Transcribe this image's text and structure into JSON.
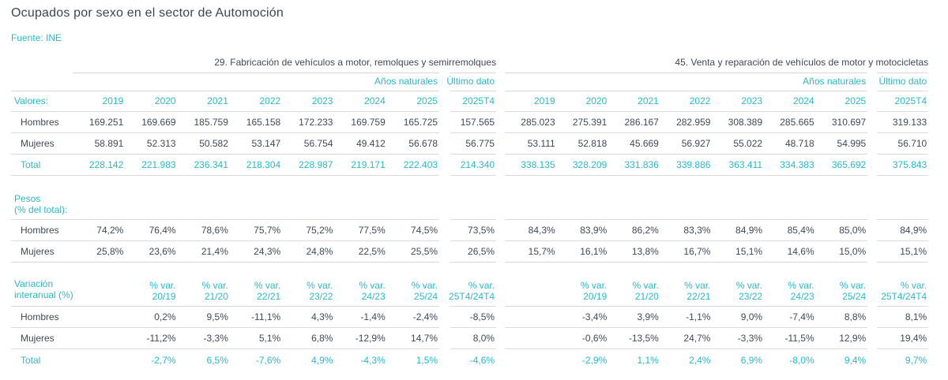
{
  "page": {
    "title": "Ocupados por sexo en el sector de Automoción",
    "source": "Fuente: INE"
  },
  "theme": {
    "accent": "#2bb8c6",
    "ink": "#3e4a59",
    "rule": "#d8dce0",
    "title": "#3b4654"
  },
  "chart_data": [
    {
      "type": "table",
      "title": "29. Fabricación de vehículos a motor, remolques y semirremolques",
      "annual_group_label": "Años naturales",
      "latest_group_label": "Último dato",
      "year_columns": [
        "2019",
        "2020",
        "2021",
        "2022",
        "2023",
        "2024",
        "2025"
      ],
      "latest_column": "2025T4",
      "sections": [
        {
          "label": "Valores:",
          "rows": [
            {
              "name": "Hombres",
              "accent": false,
              "annual": [
                "169.251",
                "169.669",
                "185.759",
                "165.158",
                "172.233",
                "169.759",
                "165.725"
              ],
              "latest": "157.565"
            },
            {
              "name": "Mujeres",
              "accent": false,
              "annual": [
                "58.891",
                "52.313",
                "50.582",
                "53.147",
                "56.754",
                "49.412",
                "56.678"
              ],
              "latest": "56.775"
            },
            {
              "name": "Total",
              "accent": true,
              "annual": [
                "228.142",
                "221.983",
                "236.341",
                "218.304",
                "228.987",
                "219.171",
                "222.403"
              ],
              "latest": "214.340"
            }
          ]
        },
        {
          "label_lines": [
            "Pesos",
            "(% del total):"
          ],
          "rows": [
            {
              "name": "Hombres",
              "accent": false,
              "annual": [
                "74,2%",
                "76,4%",
                "78,6%",
                "75,7%",
                "75,2%",
                "77,5%",
                "74,5%"
              ],
              "latest": "73,5%"
            },
            {
              "name": "Mujeres",
              "accent": false,
              "annual": [
                "25,8%",
                "23,6%",
                "21,4%",
                "24,3%",
                "24,8%",
                "22,5%",
                "25,5%"
              ],
              "latest": "26,5%"
            }
          ]
        },
        {
          "label_lines": [
            "Variación",
            "interanual (%)"
          ],
          "var_header_prefix": "% var.",
          "var_periods": [
            "",
            "20/19",
            "21/20",
            "22/21",
            "23/22",
            "24/23",
            "25/24"
          ],
          "var_latest_period": "25T4/24T4",
          "rows": [
            {
              "name": "Hombres",
              "accent": false,
              "annual": [
                "",
                "0,2%",
                "9,5%",
                "-11,1%",
                "4,3%",
                "-1,4%",
                "-2,4%"
              ],
              "latest": "-8,5%"
            },
            {
              "name": "Mujeres",
              "accent": false,
              "annual": [
                "",
                "-11,2%",
                "-3,3%",
                "5,1%",
                "6,8%",
                "-12,9%",
                "14,7%"
              ],
              "latest": "8,0%"
            },
            {
              "name": "Total",
              "accent": true,
              "annual": [
                "",
                "-2,7%",
                "6,5%",
                "-7,6%",
                "4,9%",
                "-4,3%",
                "1,5%"
              ],
              "latest": "-4,6%"
            }
          ]
        }
      ]
    },
    {
      "type": "table",
      "title": "45. Venta y reparación de vehículos de motor y motocicletas",
      "annual_group_label": "Años naturales",
      "latest_group_label": "Último dato",
      "year_columns": [
        "2019",
        "2020",
        "2021",
        "2022",
        "2023",
        "2024",
        "2025"
      ],
      "latest_column": "2025T4",
      "sections": [
        {
          "label": "Valores:",
          "rows": [
            {
              "name": "Hombres",
              "accent": false,
              "annual": [
                "285.023",
                "275.391",
                "286.167",
                "282.959",
                "308.389",
                "285.665",
                "310.697"
              ],
              "latest": "319.133"
            },
            {
              "name": "Mujeres",
              "accent": false,
              "annual": [
                "53.111",
                "52.818",
                "45.669",
                "56.927",
                "55.022",
                "48.718",
                "54.995"
              ],
              "latest": "56.710"
            },
            {
              "name": "Total",
              "accent": true,
              "annual": [
                "338.135",
                "328.209",
                "331.836",
                "339.886",
                "363.411",
                "334.383",
                "365.692"
              ],
              "latest": "375.843"
            }
          ]
        },
        {
          "label_lines": [
            "Pesos",
            "(% del total):"
          ],
          "rows": [
            {
              "name": "Hombres",
              "accent": false,
              "annual": [
                "84,3%",
                "83,9%",
                "86,2%",
                "83,3%",
                "84,9%",
                "85,4%",
                "85,0%"
              ],
              "latest": "84,9%"
            },
            {
              "name": "Mujeres",
              "accent": false,
              "annual": [
                "15,7%",
                "16,1%",
                "13,8%",
                "16,7%",
                "15,1%",
                "14,6%",
                "15,0%"
              ],
              "latest": "15,1%"
            }
          ]
        },
        {
          "label_lines": [
            "Variación",
            "interanual (%)"
          ],
          "var_header_prefix": "% var.",
          "var_periods": [
            "",
            "20/19",
            "21/20",
            "22/21",
            "23/22",
            "24/23",
            "25/24"
          ],
          "var_latest_period": "25T4/24T4",
          "rows": [
            {
              "name": "Hombres",
              "accent": false,
              "annual": [
                "",
                "-3,4%",
                "3,9%",
                "-1,1%",
                "9,0%",
                "-7,4%",
                "8,8%"
              ],
              "latest": "8,1%"
            },
            {
              "name": "Mujeres",
              "accent": false,
              "annual": [
                "",
                "-0,6%",
                "-13,5%",
                "24,7%",
                "-3,3%",
                "-11,5%",
                "12,9%"
              ],
              "latest": "19,4%"
            },
            {
              "name": "Total",
              "accent": true,
              "annual": [
                "",
                "-2,9%",
                "1,1%",
                "2,4%",
                "6,9%",
                "-8,0%",
                "9,4%"
              ],
              "latest": "9,7%"
            }
          ]
        }
      ]
    }
  ]
}
